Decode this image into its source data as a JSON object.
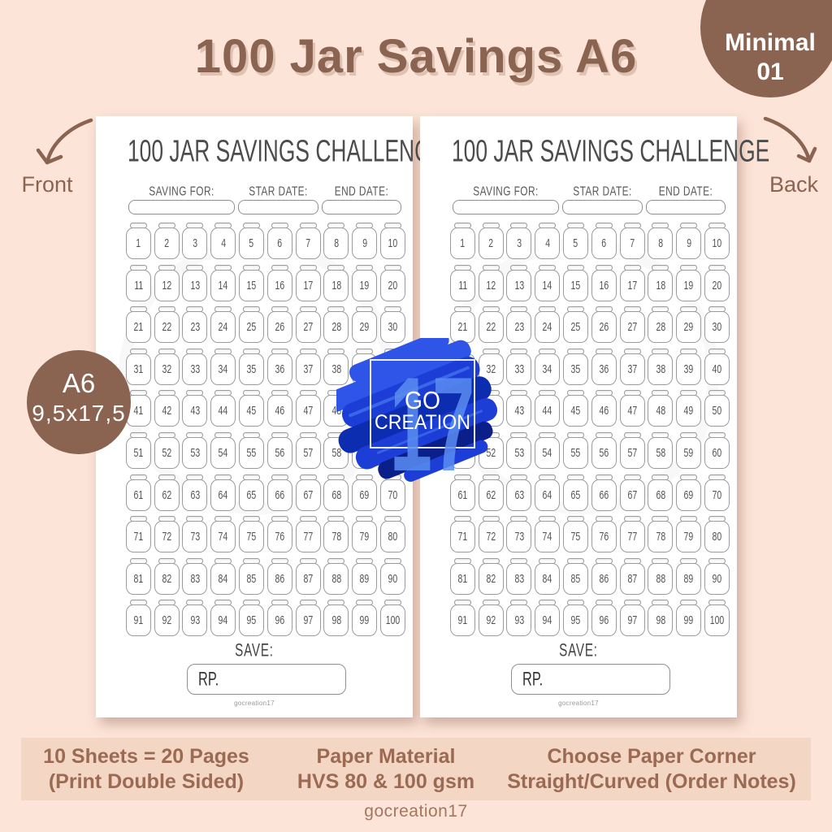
{
  "header": {
    "title": "100 Jar Savings A6",
    "badge_line1": "Minimal",
    "badge_line2": "01"
  },
  "annotations": {
    "front": "Front",
    "back": "Back"
  },
  "size_badge": {
    "line1": "A6",
    "line2": "9,5x17,5"
  },
  "logo": {
    "number": "17",
    "line1": "GO",
    "line2": "CREATION"
  },
  "sheet": {
    "title": "100 JAR SAVINGS CHALLENGE",
    "field_labels": [
      "SAVING FOR:",
      "STAR DATE:",
      "END DATE:"
    ],
    "save_label": "SAVE:",
    "currency_label": "RP.",
    "brand": "gocreation17",
    "jar_numbers": [
      1,
      2,
      3,
      4,
      5,
      6,
      7,
      8,
      9,
      10,
      11,
      12,
      13,
      14,
      15,
      16,
      17,
      18,
      19,
      20,
      21,
      22,
      23,
      24,
      25,
      26,
      27,
      28,
      29,
      30,
      31,
      32,
      33,
      34,
      35,
      36,
      37,
      38,
      39,
      40,
      41,
      42,
      43,
      44,
      45,
      46,
      47,
      48,
      49,
      50,
      51,
      52,
      53,
      54,
      55,
      56,
      57,
      58,
      59,
      60,
      61,
      62,
      63,
      64,
      65,
      66,
      67,
      68,
      69,
      70,
      71,
      72,
      73,
      74,
      75,
      76,
      77,
      78,
      79,
      80,
      81,
      82,
      83,
      84,
      85,
      86,
      87,
      88,
      89,
      90,
      91,
      92,
      93,
      94,
      95,
      96,
      97,
      98,
      99,
      100
    ]
  },
  "footer": {
    "info1": [
      "10 Sheets = 20 Pages",
      "(Print Double Sided)"
    ],
    "info2": [
      "Paper Material",
      "HVS 80 & 100 gsm"
    ],
    "info3": [
      "Choose Paper Corner",
      "Straight/Curved (Order Notes)"
    ],
    "brand": "gocreation17"
  },
  "colors": {
    "background": "#fde4d8",
    "banner": "#f4d6c5",
    "title_brown": "#8a6450",
    "badge_brown": "#8a6351",
    "footer_text": "#9a6a52",
    "sheet_outline_gray": "#9b9b9b",
    "sheet_text_gray": "#4c4c4c",
    "splash_blue": "#1d3ed6",
    "splash_navy": "#0c2db0",
    "splash_bright_blue": "#2e55e8",
    "splash_dark_navy": "#0a1f8a",
    "logo_number_blue": "#5b8df2"
  }
}
